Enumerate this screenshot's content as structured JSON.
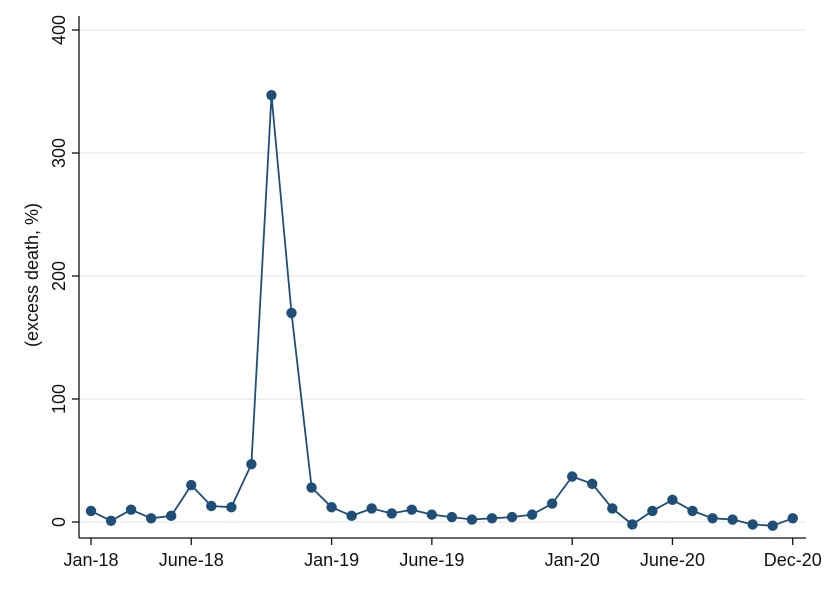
{
  "chart_data": {
    "type": "line",
    "title": "",
    "xlabel": "",
    "ylabel": "(excess death, %)",
    "ylim": [
      0,
      400
    ],
    "yticks": [
      0,
      100,
      200,
      300,
      400
    ],
    "grid": true,
    "xtick_labels": [
      {
        "label": "Jan-18",
        "index": 0
      },
      {
        "label": "June-18",
        "index": 5
      },
      {
        "label": "Jan-19",
        "index": 12
      },
      {
        "label": "June-19",
        "index": 17
      },
      {
        "label": "Jan-20",
        "index": 24
      },
      {
        "label": "June-20",
        "index": 29
      },
      {
        "label": "Dec-20",
        "index": 35
      }
    ],
    "x": [
      "2018-01",
      "2018-02",
      "2018-03",
      "2018-04",
      "2018-05",
      "2018-06",
      "2018-07",
      "2018-08",
      "2018-09",
      "2018-10",
      "2018-11",
      "2018-12",
      "2019-01",
      "2019-02",
      "2019-03",
      "2019-04",
      "2019-05",
      "2019-06",
      "2019-07",
      "2019-08",
      "2019-09",
      "2019-10",
      "2019-11",
      "2019-12",
      "2020-01",
      "2020-02",
      "2020-03",
      "2020-04",
      "2020-05",
      "2020-06",
      "2020-07",
      "2020-08",
      "2020-09",
      "2020-10",
      "2020-11",
      "2020-12"
    ],
    "series": [
      {
        "values": [
          9,
          1,
          10,
          3,
          5,
          30,
          13,
          12,
          47,
          347,
          170,
          28,
          12,
          5,
          11,
          7,
          10,
          6,
          4,
          2,
          3,
          4,
          6,
          15,
          37,
          31,
          11,
          -2,
          9,
          18,
          9,
          3,
          2,
          -2,
          -3,
          3
        ],
        "color": "#1f4e79"
      }
    ],
    "colors": {
      "line": "#1f4e79",
      "marker": "#1f4e79",
      "grid": "#e3eaea",
      "axis": "#111111"
    }
  }
}
